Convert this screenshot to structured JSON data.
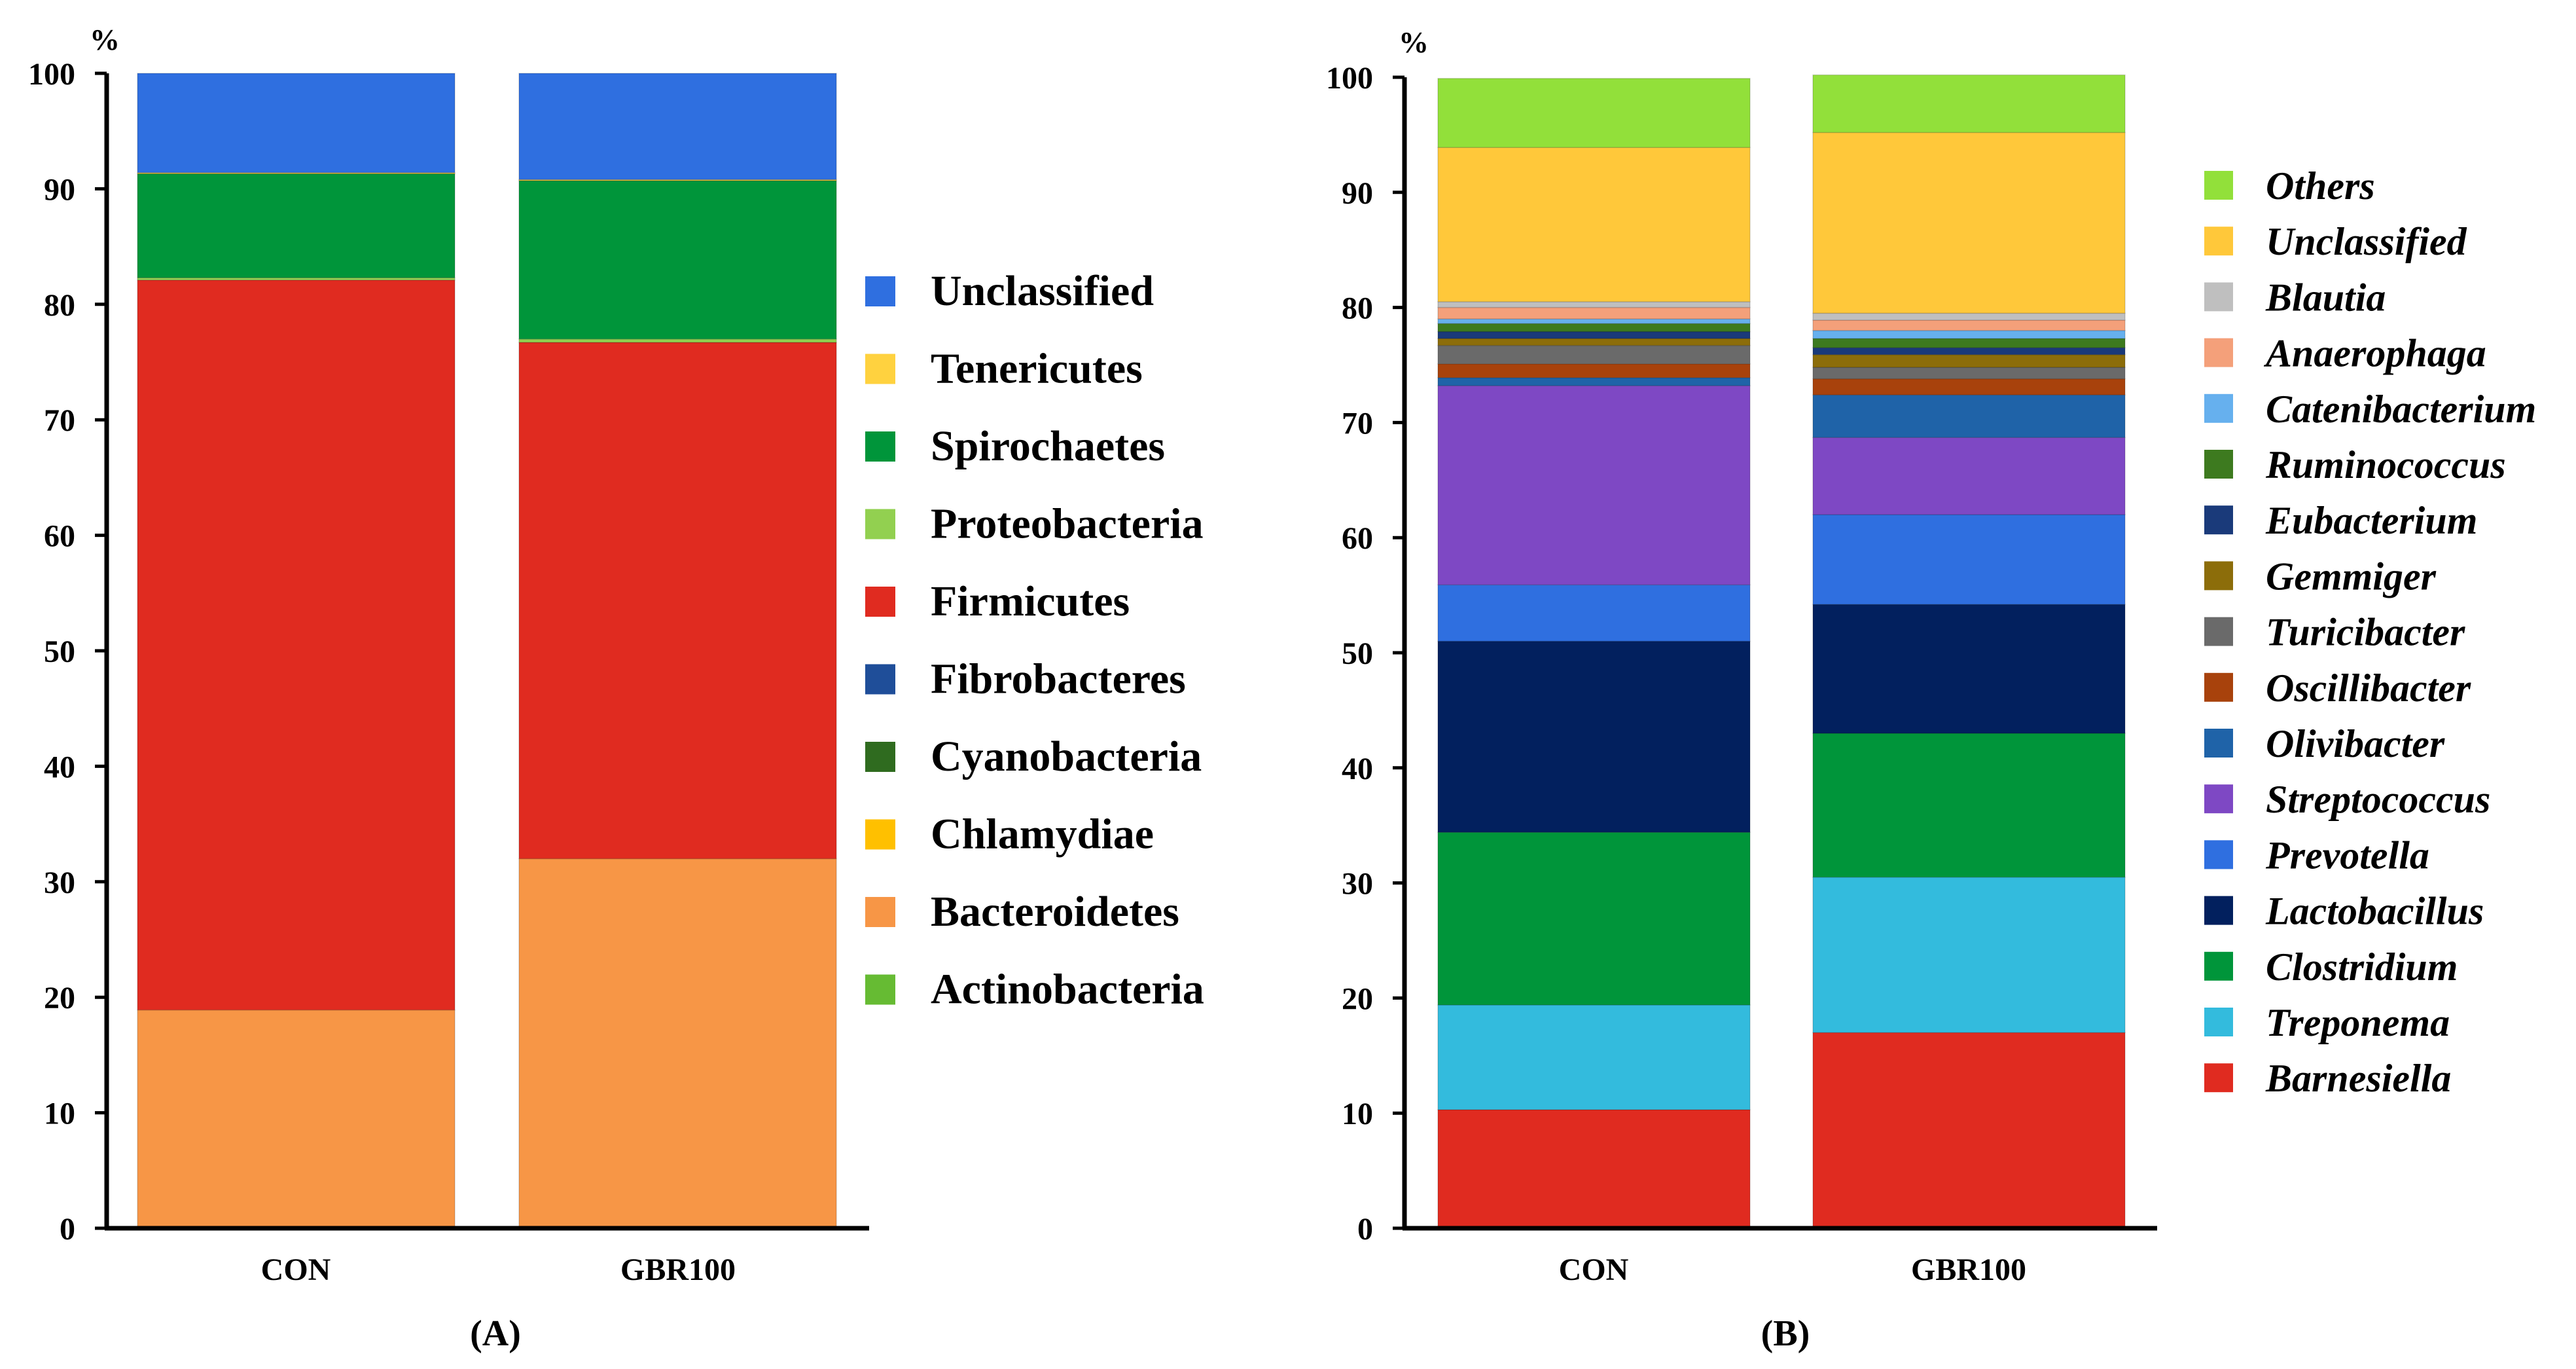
{
  "chart_data": [
    {
      "type": "bar",
      "stacked": true,
      "panel_label": "(A)",
      "ylabel": "%",
      "ylim": [
        0,
        100
      ],
      "yticks": [
        0,
        10,
        20,
        30,
        40,
        50,
        60,
        70,
        80,
        90,
        100
      ],
      "categories": [
        "CON",
        "GBR100"
      ],
      "legend": [
        "Unclassified",
        "Tenericutes",
        "Spirochaetes",
        "Proteobacteria",
        "Firmicutes",
        "Fibrobacteres",
        "Cyanobacteria",
        "Chlamydiae",
        "Bacteroidetes",
        "Actinobacteria"
      ],
      "series": [
        {
          "name": "Actinobacteria",
          "color": "#66bb33",
          "values": [
            0,
            0
          ]
        },
        {
          "name": "Bacteroidetes",
          "color": "#f79646",
          "values": [
            18.9,
            32.0
          ]
        },
        {
          "name": "Chlamydiae",
          "color": "#ffc000",
          "values": [
            0,
            0
          ]
        },
        {
          "name": "Cyanobacteria",
          "color": "#2f6b1f",
          "values": [
            0,
            0
          ]
        },
        {
          "name": "Fibrobacteres",
          "color": "#1f4e99",
          "values": [
            0,
            0
          ]
        },
        {
          "name": "Firmicutes",
          "color": "#e02b20",
          "values": [
            63.2,
            44.7
          ]
        },
        {
          "name": "Proteobacteria",
          "color": "#92d050",
          "values": [
            0.2,
            0.3
          ]
        },
        {
          "name": "Spirochaetes",
          "color": "#00953a",
          "values": [
            9.0,
            13.7
          ]
        },
        {
          "name": "Tenericutes",
          "color": "#ffd23f",
          "values": [
            0.1,
            0.1
          ]
        },
        {
          "name": "Unclassified",
          "color": "#2f6fe0",
          "values": [
            8.6,
            9.2
          ]
        }
      ]
    },
    {
      "type": "bar",
      "stacked": true,
      "panel_label": "(B)",
      "ylabel": "%",
      "ylim": [
        0,
        100
      ],
      "yticks": [
        0,
        10,
        20,
        30,
        40,
        50,
        60,
        70,
        80,
        90,
        100
      ],
      "categories": [
        "CON",
        "GBR100"
      ],
      "legend": [
        "Others",
        "Unclassified",
        "Blautia",
        "Anaerophaga",
        "Catenibacterium",
        "Ruminococcus",
        "Eubacterium",
        "Gemmiger",
        "Turicibacter",
        "Oscillibacter",
        "Olivibacter",
        "Streptococcus",
        "Prevotella",
        "Lactobacillus",
        "Clostridium",
        "Treponema",
        "Barnesiella"
      ],
      "series": [
        {
          "name": "Barnesiella",
          "color": "#e02b20",
          "values": [
            10.3,
            17.0
          ]
        },
        {
          "name": "Treponema",
          "color": "#33bbdd",
          "values": [
            9.1,
            13.5
          ]
        },
        {
          "name": "Clostridium",
          "color": "#00953a",
          "values": [
            15.0,
            12.5
          ]
        },
        {
          "name": "Lactobacillus",
          "color": "#02205e",
          "values": [
            16.6,
            11.2
          ]
        },
        {
          "name": "Prevotella",
          "color": "#2f6fe0",
          "values": [
            4.9,
            7.8
          ]
        },
        {
          "name": "Streptococcus",
          "color": "#7e48c4",
          "values": [
            17.3,
            6.7
          ]
        },
        {
          "name": "Olivibacter",
          "color": "#1f63a8",
          "values": [
            0.7,
            3.7
          ]
        },
        {
          "name": "Oscillibacter",
          "color": "#a8420c",
          "values": [
            1.2,
            1.4
          ]
        },
        {
          "name": "Turicibacter",
          "color": "#6a6a6a",
          "values": [
            1.6,
            1.0
          ]
        },
        {
          "name": "Gemmiger",
          "color": "#8c6d0a",
          "values": [
            0.6,
            1.1
          ]
        },
        {
          "name": "Eubacterium",
          "color": "#1a3a7a",
          "values": [
            0.6,
            0.6
          ]
        },
        {
          "name": "Ruminococcus",
          "color": "#3d7a1f",
          "values": [
            0.7,
            0.8
          ]
        },
        {
          "name": "Catenibacterium",
          "color": "#66b0ee",
          "values": [
            0.4,
            0.7
          ]
        },
        {
          "name": "Anaerophaga",
          "color": "#f4a07a",
          "values": [
            1.0,
            0.9
          ]
        },
        {
          "name": "Blautia",
          "color": "#bfbfbf",
          "values": [
            0.5,
            0.6
          ]
        },
        {
          "name": "Unclassified",
          "color": "#ffc83a",
          "values": [
            13.4,
            15.7
          ]
        },
        {
          "name": "Others",
          "color": "#92e03a",
          "values": [
            6.0,
            5.0
          ]
        }
      ]
    }
  ]
}
